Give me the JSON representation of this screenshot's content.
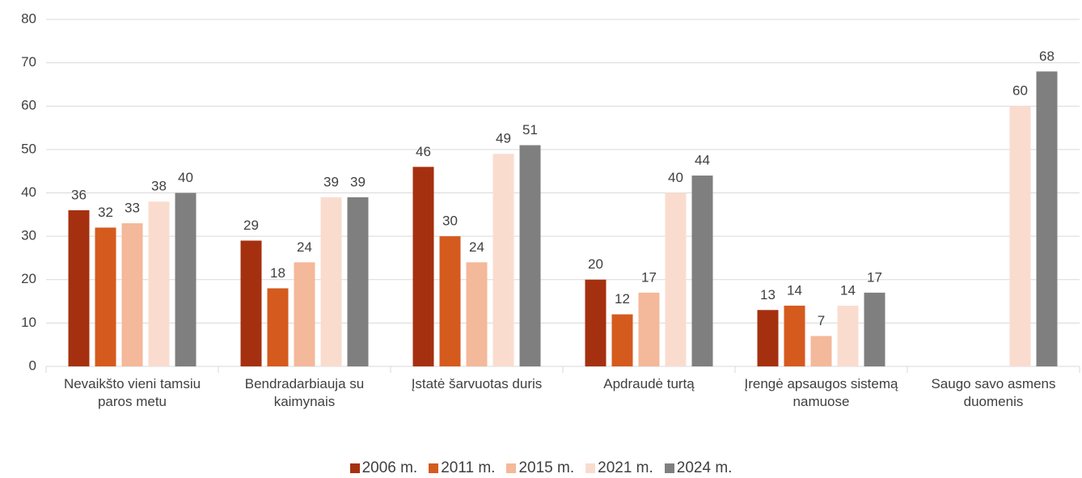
{
  "chart_data": {
    "type": "bar",
    "categories": [
      "Nevaikšto vieni tamsiu paros metu",
      "Bendradarbiauja su kaimynais",
      "Įstatė šarvuotas duris",
      "Apdraudė turtą",
      "Įrengė apsaugos sistemą namuose",
      "Saugo savo asmens duomenis"
    ],
    "series": [
      {
        "name": "2006 m.",
        "color": "#a5300f",
        "values": [
          36,
          29,
          46,
          20,
          13,
          null
        ]
      },
      {
        "name": "2011 m.",
        "color": "#d55a1e",
        "values": [
          32,
          18,
          30,
          12,
          14,
          null
        ]
      },
      {
        "name": "2015 m.",
        "color": "#f4b89a",
        "values": [
          33,
          24,
          24,
          17,
          7,
          null
        ]
      },
      {
        "name": "2021 m.",
        "color": "#fadccf",
        "values": [
          38,
          39,
          49,
          40,
          14,
          60
        ]
      },
      {
        "name": "2024 m.",
        "color": "#7f7f7f",
        "values": [
          40,
          39,
          51,
          44,
          17,
          68
        ]
      }
    ],
    "ylim": [
      0,
      80
    ],
    "yticks": [
      0,
      10,
      20,
      30,
      40,
      50,
      60,
      70,
      80
    ],
    "grid": true,
    "legend": "bottom"
  }
}
